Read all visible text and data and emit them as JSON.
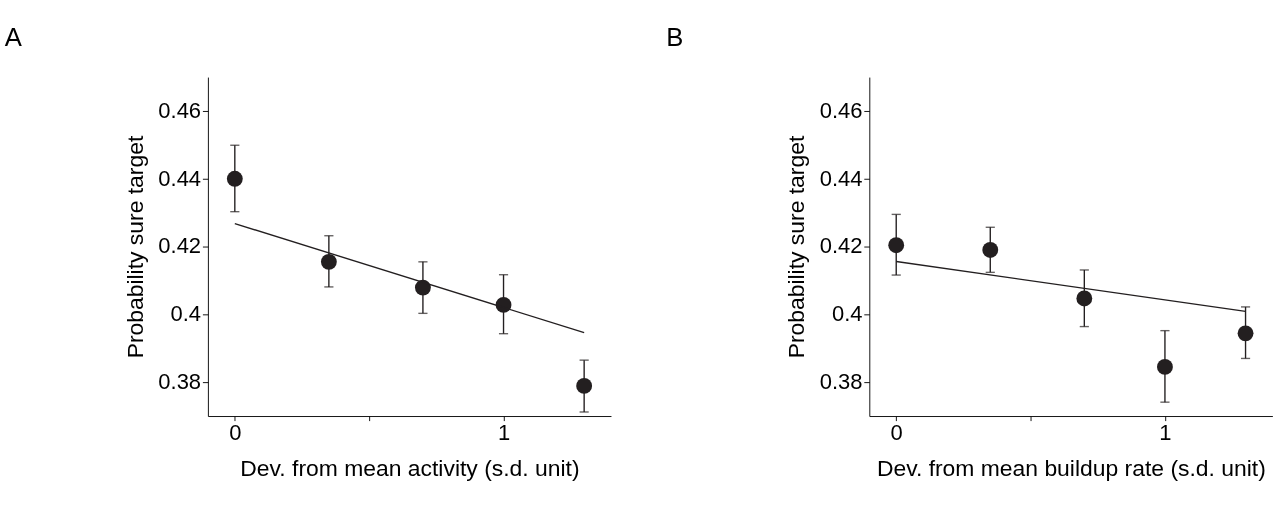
{
  "chart_data": [
    {
      "type": "scatter",
      "title": "A",
      "xlabel": "Dev. from mean activity (s.d. unit)",
      "ylabel": "Probability sure target",
      "xlim": [
        -0.1,
        1.4
      ],
      "xticks": [
        0,
        {
          "value": 0.5,
          "label": null
        },
        1
      ],
      "ylim": [
        0.37,
        0.47
      ],
      "yticks": [
        0.38,
        0.4,
        0.42,
        0.44,
        0.46
      ],
      "grid": false,
      "series": [
        {
          "type": "scatter",
          "marker": "circle",
          "color": "#231f20",
          "x": [
            0,
            0.35,
            0.7,
            1.0,
            1.3
          ],
          "values": [
            0.44,
            0.4155,
            0.4079,
            0.4028,
            0.3789
          ],
          "errors": [
            [
              0.4303,
              0.4499
            ],
            [
              0.4081,
              0.4232
            ],
            [
              0.4003,
              0.4155
            ],
            [
              0.3943,
              0.4117
            ],
            [
              0.3712,
              0.3865
            ]
          ]
        },
        {
          "type": "line",
          "marker": "none",
          "color": "#231f20",
          "line_style": "solid",
          "x": [
            0,
            1.3
          ],
          "values": [
            0.4268,
            0.3946
          ]
        }
      ]
    },
    {
      "type": "scatter",
      "title": "B",
      "xlabel": "Dev. from mean buildup rate (s.d. unit)",
      "ylabel": "Probability sure target",
      "xlim": [
        -0.1,
        1.4
      ],
      "xticks": [
        0,
        {
          "value": 0.5,
          "label": null
        },
        1
      ],
      "ylim": [
        0.37,
        0.47
      ],
      "yticks": [
        0.38,
        0.4,
        0.42,
        0.44,
        0.46
      ],
      "grid": false,
      "series": [
        {
          "type": "scatter",
          "marker": "circle",
          "color": "#231f20",
          "x": [
            0,
            0.35,
            0.7,
            1.0,
            1.3
          ],
          "values": [
            0.4204,
            0.419,
            0.4047,
            0.3845,
            0.3944
          ],
          "errors": [
            [
              0.4116,
              0.4295
            ],
            [
              0.4124,
              0.4257
            ],
            [
              0.3964,
              0.4131
            ],
            [
              0.3741,
              0.3952
            ],
            [
              0.387,
              0.4022
            ]
          ]
        },
        {
          "type": "line",
          "marker": "none",
          "color": "#231f20",
          "line_style": "solid",
          "x": [
            0,
            1.3
          ],
          "values": [
            0.4156,
            0.4009
          ]
        }
      ]
    }
  ]
}
